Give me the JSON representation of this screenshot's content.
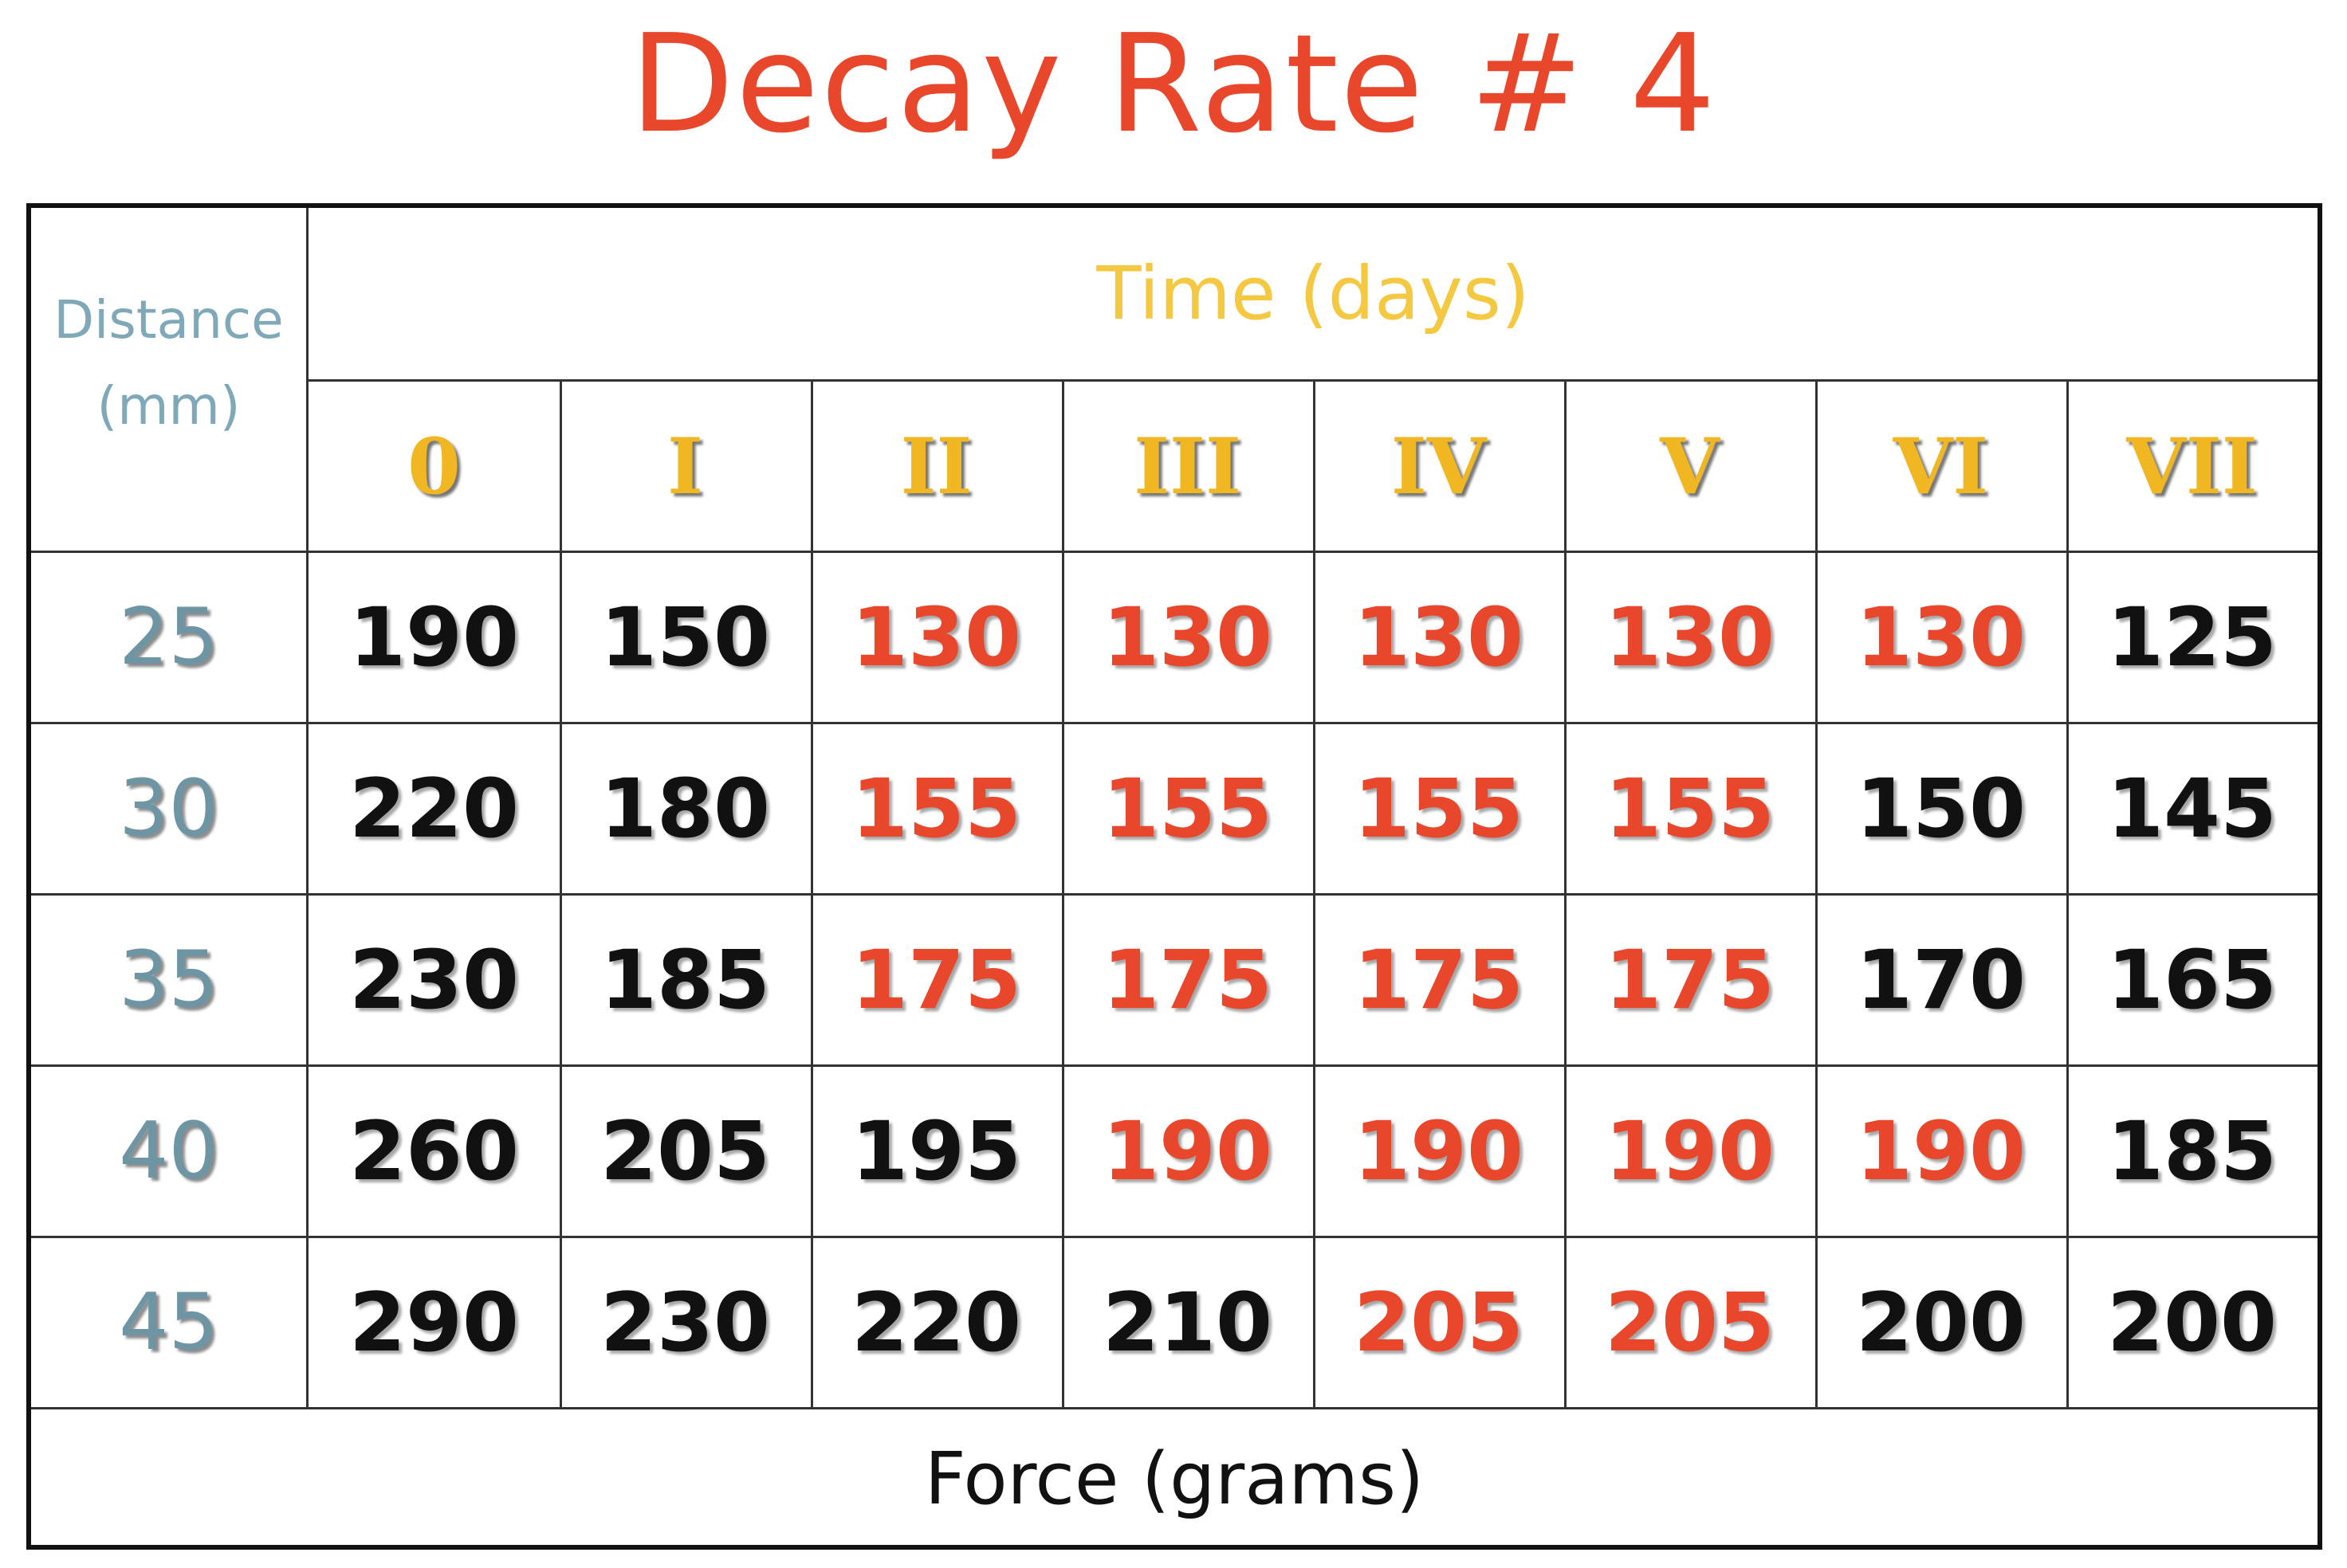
{
  "title": "Decay Rate # 4",
  "table": {
    "distance_header_line1": "Distance",
    "distance_header_line2": "(mm)",
    "time_header": "Time (days)",
    "columns": [
      "0",
      "I",
      "II",
      "III",
      "IV",
      "V",
      "VI",
      "VII"
    ],
    "rows": [
      {
        "distance": "25",
        "values": [
          "190",
          "150",
          "130",
          "130",
          "130",
          "130",
          "130",
          "125"
        ],
        "highlight": [
          false,
          false,
          true,
          true,
          true,
          true,
          true,
          false
        ]
      },
      {
        "distance": "30",
        "values": [
          "220",
          "180",
          "155",
          "155",
          "155",
          "155",
          "150",
          "145"
        ],
        "highlight": [
          false,
          false,
          true,
          true,
          true,
          true,
          false,
          false
        ]
      },
      {
        "distance": "35",
        "values": [
          "230",
          "185",
          "175",
          "175",
          "175",
          "175",
          "170",
          "165"
        ],
        "highlight": [
          false,
          false,
          true,
          true,
          true,
          true,
          false,
          false
        ]
      },
      {
        "distance": "40",
        "values": [
          "260",
          "205",
          "195",
          "190",
          "190",
          "190",
          "190",
          "185"
        ],
        "highlight": [
          false,
          false,
          false,
          true,
          true,
          true,
          true,
          false
        ]
      },
      {
        "distance": "45",
        "values": [
          "290",
          "230",
          "220",
          "210",
          "205",
          "205",
          "200",
          "200"
        ],
        "highlight": [
          false,
          false,
          false,
          false,
          true,
          true,
          false,
          false
        ]
      }
    ],
    "footer": "Force (grams)"
  },
  "colors": {
    "title": "#e9472b",
    "highlight_value": "#e9472b",
    "normal_value": "#111111",
    "column_header": "#f0b722",
    "time_header": "#f5c842",
    "distance": "#6e95a3"
  }
}
